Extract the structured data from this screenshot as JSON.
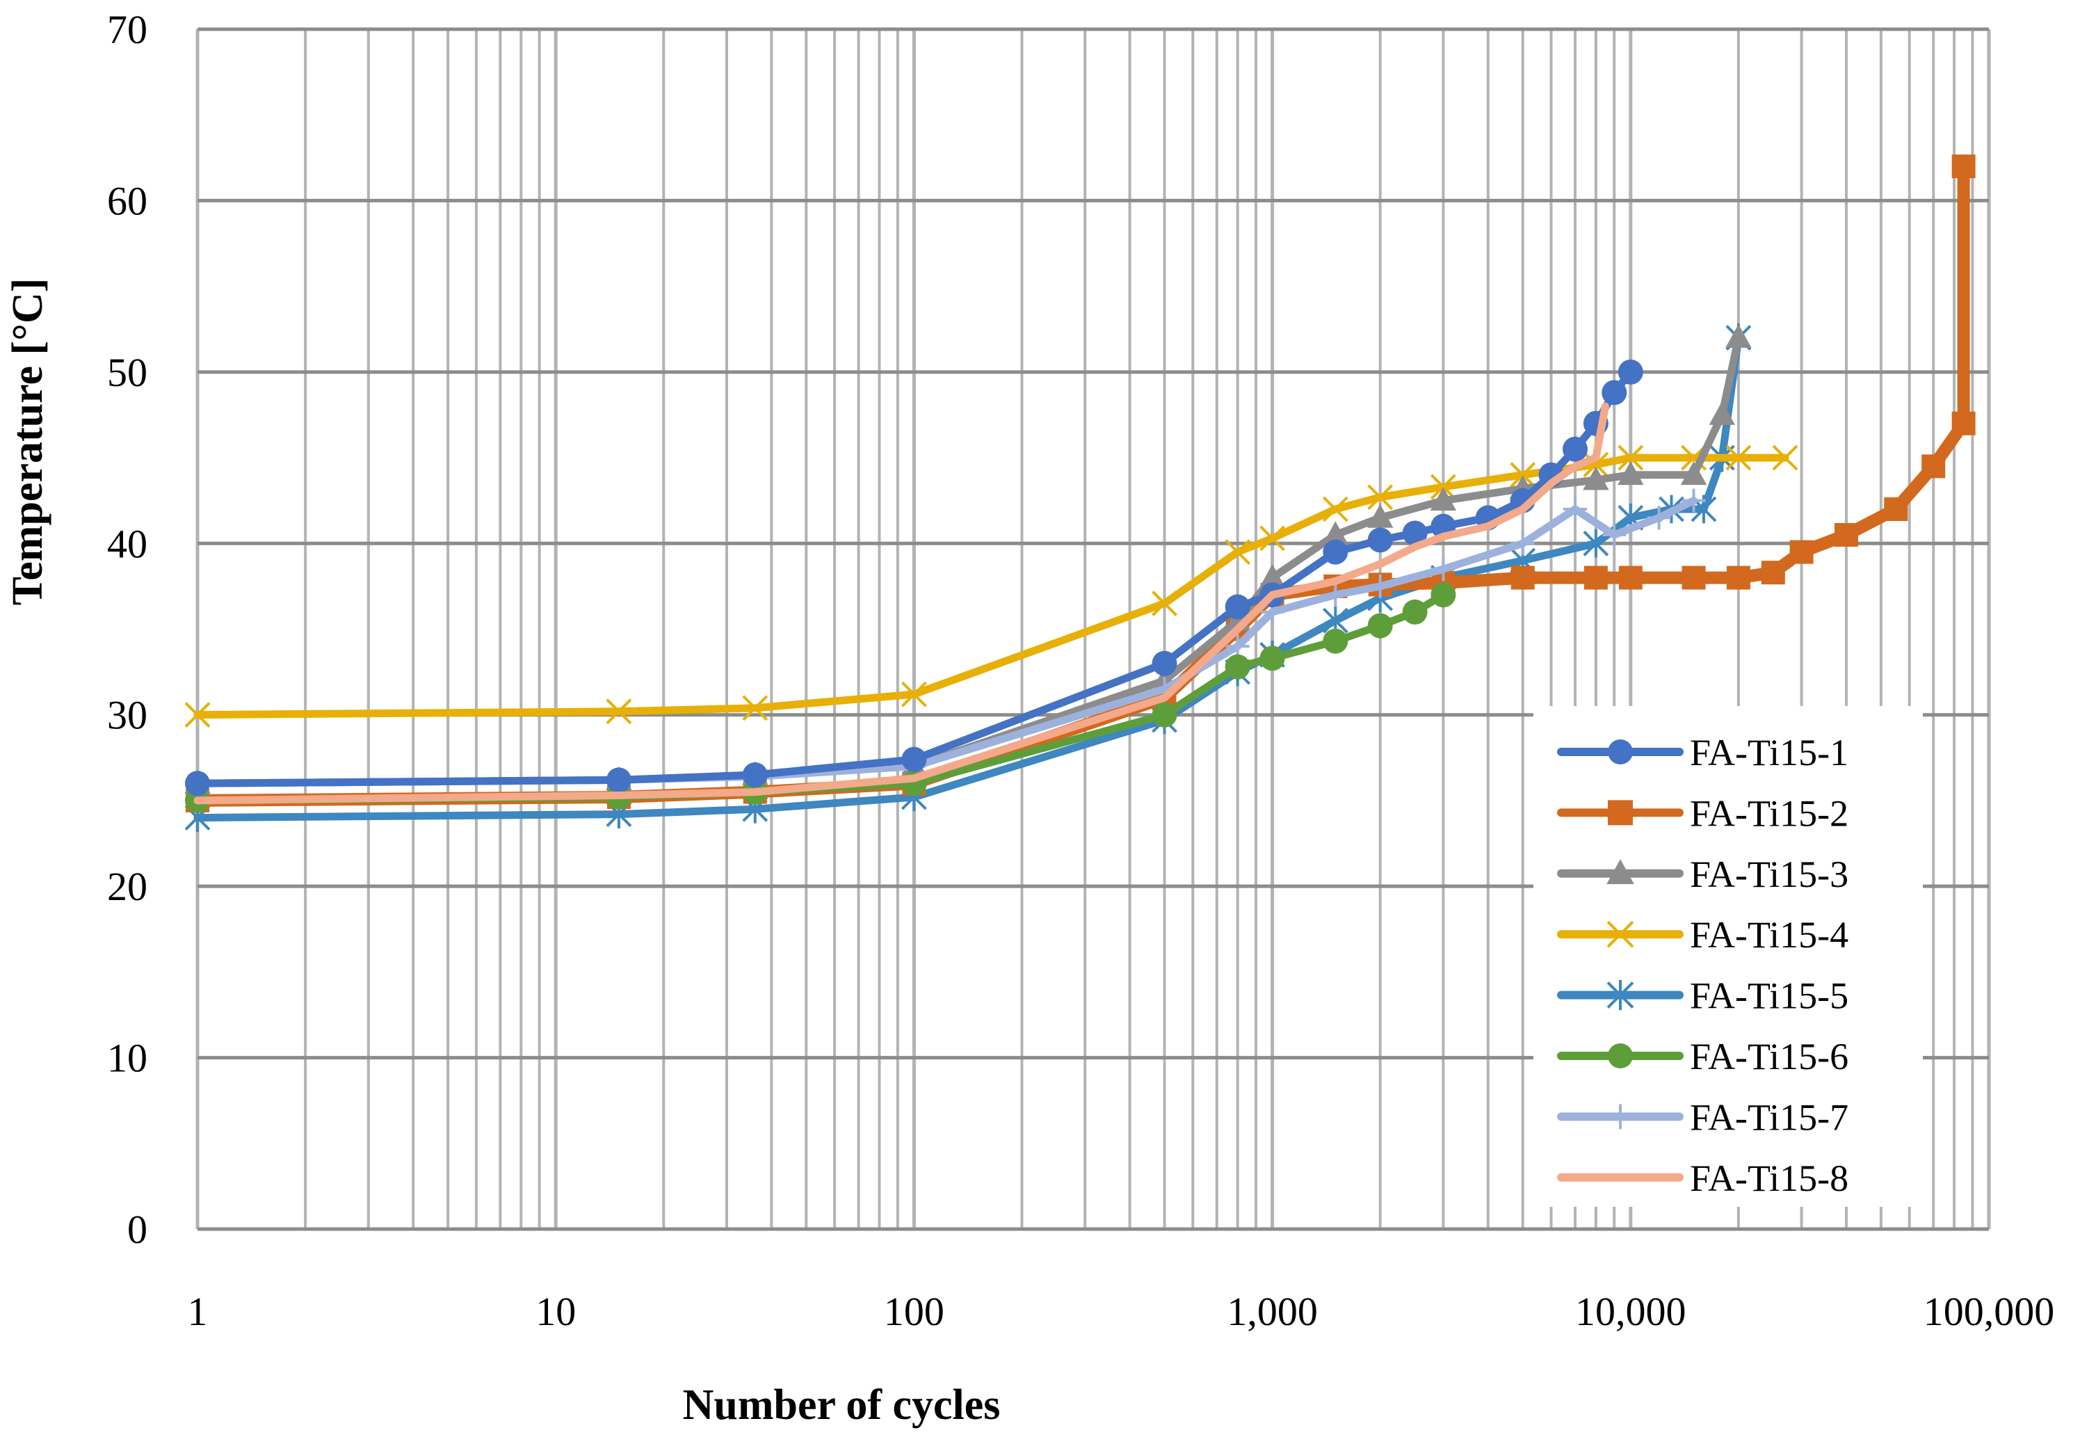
{
  "chart_data": {
    "type": "line",
    "title": "",
    "xlabel": "Number of cycles",
    "ylabel": "Temperature [°C]",
    "xscale": "log",
    "xlim": [
      1,
      100000
    ],
    "ylim": [
      0,
      70
    ],
    "grid": true,
    "legend_position": "bottom-right",
    "x_tick_values": [
      1,
      10,
      100,
      1000,
      10000,
      100000
    ],
    "x_tick_labels": [
      "1",
      "10",
      "100",
      "1,000",
      "10,000",
      "100,000"
    ],
    "y_tick_values": [
      0,
      10,
      20,
      30,
      40,
      50,
      60,
      70
    ],
    "y_tick_labels": [
      "0",
      "10",
      "20",
      "30",
      "40",
      "50",
      "60",
      "70"
    ],
    "series": [
      {
        "name": "FA-Ti15-1",
        "color": "#4472C4",
        "marker": "circle",
        "x": [
          1,
          15,
          36,
          100,
          500,
          800,
          1000,
          1500,
          2000,
          2500,
          3000,
          4000,
          5000,
          6000,
          7000,
          8000,
          9000,
          10000
        ],
        "y": [
          26,
          26.2,
          26.5,
          27.4,
          33,
          36.3,
          37,
          39.5,
          40.2,
          40.6,
          41,
          41.5,
          42.5,
          44,
          45.5,
          47,
          48.8,
          50
        ]
      },
      {
        "name": "FA-Ti15-2",
        "color": "#D2691E",
        "marker": "square",
        "x": [
          1,
          15,
          36,
          100,
          500,
          800,
          1000,
          1500,
          2000,
          3000,
          5000,
          8000,
          10000,
          15000,
          20000,
          25000,
          30000,
          40000,
          55000,
          70000,
          85000,
          85000
        ],
        "y": [
          25,
          25.2,
          25.5,
          26,
          31,
          35,
          37,
          37.5,
          37.6,
          37.7,
          38,
          38,
          38,
          38,
          38,
          38.3,
          39.5,
          40.5,
          42,
          44.5,
          47,
          62
        ]
      },
      {
        "name": "FA-Ti15-3",
        "color": "#8C8C8C",
        "marker": "triangle",
        "x": [
          1,
          15,
          36,
          100,
          500,
          800,
          1000,
          1500,
          2000,
          3000,
          5000,
          8000,
          10000,
          15000,
          18000,
          20000
        ],
        "y": [
          26,
          26.2,
          26.5,
          27,
          32,
          35.5,
          38,
          40.5,
          41.5,
          42.5,
          43.2,
          43.7,
          44,
          44,
          47.5,
          52
        ]
      },
      {
        "name": "FA-Ti15-4",
        "color": "#E8B007",
        "marker": "x",
        "x": [
          1,
          15,
          36,
          100,
          500,
          800,
          1000,
          1500,
          2000,
          3000,
          5000,
          8000,
          10000,
          15000,
          20000,
          27000
        ],
        "y": [
          30,
          30.2,
          30.4,
          31.2,
          36.5,
          39.5,
          40.3,
          42,
          42.7,
          43.3,
          44,
          44.6,
          45,
          45,
          45,
          45
        ]
      },
      {
        "name": "FA-Ti15-5",
        "color": "#3E87C0",
        "marker": "asterisk",
        "x": [
          1,
          15,
          36,
          100,
          500,
          800,
          1000,
          1500,
          2000,
          3000,
          5000,
          8000,
          10000,
          13000,
          16000,
          18000,
          20000
        ],
        "y": [
          24,
          24.2,
          24.5,
          25.2,
          29.7,
          32.5,
          33.5,
          35.5,
          36.8,
          38,
          39,
          40,
          41.5,
          42,
          42,
          45,
          52
        ]
      },
      {
        "name": "FA-Ti15-6",
        "color": "#5E9E3A",
        "marker": "circle",
        "x": [
          1,
          15,
          36,
          100,
          500,
          800,
          1000,
          1500,
          2000,
          2500,
          3000
        ],
        "y": [
          25,
          25.2,
          25.5,
          26,
          30,
          32.8,
          33.3,
          34.3,
          35.2,
          36,
          37
        ]
      },
      {
        "name": "FA-Ti15-7",
        "color": "#9DB1DD",
        "marker": "plus",
        "x": [
          1,
          15,
          36,
          100,
          500,
          800,
          1000,
          1500,
          2000,
          3000,
          5000,
          7000,
          9000,
          12000,
          15000
        ],
        "y": [
          26,
          26.2,
          26.4,
          27,
          31.5,
          34,
          36,
          37,
          37.5,
          38.5,
          40,
          42,
          40.5,
          41.5,
          42.5
        ]
      },
      {
        "name": "FA-Ti15-8",
        "color": "#F4A98A",
        "marker": "none",
        "x": [
          1,
          15,
          36,
          100,
          500,
          800,
          1000,
          1500,
          2000,
          2500,
          3000,
          4000,
          5000,
          6000,
          7000,
          8000,
          8500
        ],
        "y": [
          25,
          25.3,
          25.5,
          26.3,
          31,
          35,
          37,
          37.8,
          38.8,
          39.8,
          40.4,
          41,
          42,
          43.5,
          44.5,
          45,
          48
        ]
      }
    ]
  }
}
